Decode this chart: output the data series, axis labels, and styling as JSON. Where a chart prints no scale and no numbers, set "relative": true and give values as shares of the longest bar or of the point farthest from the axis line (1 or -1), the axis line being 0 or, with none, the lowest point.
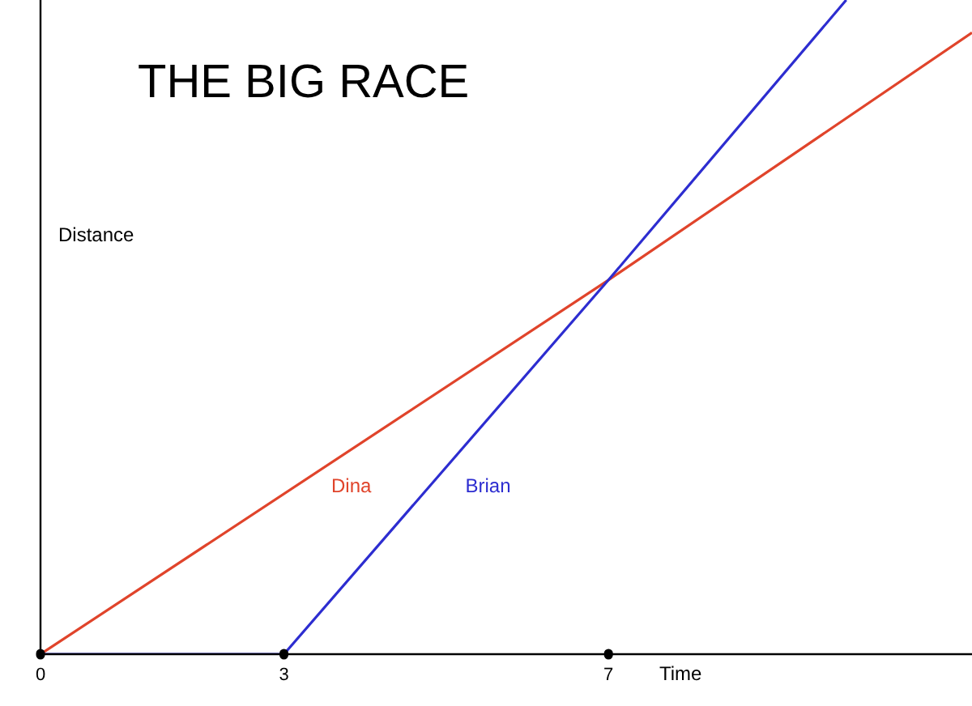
{
  "chart_data": {
    "type": "line",
    "title": "THE BIG RACE",
    "xlabel": "Time",
    "ylabel": "Distance",
    "relative": true,
    "xlim": [
      0,
      11.48
    ],
    "xticks": [
      0,
      3,
      7
    ],
    "marker": "none",
    "line_style": "solid",
    "series": [
      {
        "name": "Dina",
        "color": "#e0442b",
        "x": [
          0,
          7,
          11.48
        ],
        "values": [
          0,
          0.572,
          0.95
        ]
      },
      {
        "name": "Brian",
        "color": "#2d2dd0",
        "x": [
          0,
          3,
          7,
          9.93
        ],
        "values": [
          0,
          0,
          0.572,
          1
        ]
      }
    ]
  }
}
